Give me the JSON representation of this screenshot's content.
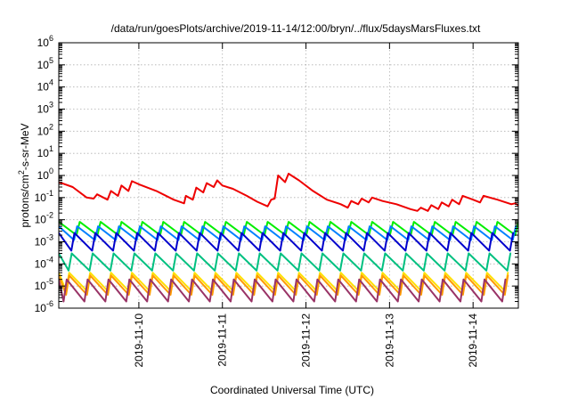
{
  "chart_data": {
    "type": "line",
    "title": "/data/run/goesPlots/archive/2019-11-14/12:00/bryn/../flux/5daysMarsFluxes.txt",
    "xlabel": "Coordinated Universal Time (UTC)",
    "ylabel_parts": [
      "protons/cm",
      "2",
      "-s-sr-MeV"
    ],
    "y_scale": "log",
    "ylim": [
      1e-06,
      1000000.0
    ],
    "y_ticks": [
      {
        "base": "10",
        "exp": "-6",
        "value": 1e-06
      },
      {
        "base": "10",
        "exp": "-5",
        "value": 1e-05
      },
      {
        "base": "10",
        "exp": "-4",
        "value": 0.0001
      },
      {
        "base": "10",
        "exp": "-3",
        "value": 0.001
      },
      {
        "base": "10",
        "exp": "-2",
        "value": 0.01
      },
      {
        "base": "10",
        "exp": "-1",
        "value": 0.1
      },
      {
        "base": "10",
        "exp": "0",
        "value": 1
      },
      {
        "base": "10",
        "exp": "1",
        "value": 10.0
      },
      {
        "base": "10",
        "exp": "2",
        "value": 100.0
      },
      {
        "base": "10",
        "exp": "3",
        "value": 1000.0
      },
      {
        "base": "10",
        "exp": "4",
        "value": 10000.0
      },
      {
        "base": "10",
        "exp": "5",
        "value": 100000.0
      },
      {
        "base": "10",
        "exp": "6",
        "value": 1000000.0
      }
    ],
    "xlim": [
      "2019-11-09 01:00",
      "2019-11-14 13:00"
    ],
    "x_ticks": [
      "2019-11-10",
      "2019-11-11",
      "2019-11-12",
      "2019-11-13",
      "2019-11-14"
    ],
    "grid": true,
    "legend": "none",
    "series": [
      {
        "color": "#ee0000",
        "x": [
          "2019-11-09 01:00",
          "2019-11-09 05:00",
          "2019-11-09 09:00",
          "2019-11-09 11:00",
          "2019-11-09 12:00",
          "2019-11-09 15:00",
          "2019-11-09 16:00",
          "2019-11-09 18:00",
          "2019-11-09 19:00",
          "2019-11-09 21:00",
          "2019-11-09 22:00",
          "2019-11-10 00:00",
          "2019-11-10 05:00",
          "2019-11-10 10:00",
          "2019-11-10 13:00",
          "2019-11-10 13:30",
          "2019-11-10 15:30",
          "2019-11-10 16:30",
          "2019-11-10 18:30",
          "2019-11-10 19:30",
          "2019-11-10 21:30",
          "2019-11-10 22:30",
          "2019-11-11 00:00",
          "2019-11-11 03:00",
          "2019-11-11 07:00",
          "2019-11-11 10:00",
          "2019-11-11 13:00",
          "2019-11-11 14:00",
          "2019-11-11 15:00",
          "2019-11-11 16:00",
          "2019-11-11 18:00",
          "2019-11-11 19:00",
          "2019-11-11 22:00",
          "2019-11-12 02:00",
          "2019-11-12 06:00",
          "2019-11-12 10:00",
          "2019-11-12 12:00",
          "2019-11-12 13:00",
          "2019-11-12 15:00",
          "2019-11-12 16:00",
          "2019-11-12 18:00",
          "2019-11-12 19:00",
          "2019-11-12 22:00",
          "2019-11-13 02:00",
          "2019-11-13 06:00",
          "2019-11-13 08:00",
          "2019-11-13 09:00",
          "2019-11-13 11:00",
          "2019-11-13 12:00",
          "2019-11-13 14:00",
          "2019-11-13 15:00",
          "2019-11-13 17:00",
          "2019-11-13 18:00",
          "2019-11-13 20:00",
          "2019-11-13 21:00",
          "2019-11-14 00:00",
          "2019-11-14 02:00",
          "2019-11-14 03:00",
          "2019-11-14 07:00",
          "2019-11-14 11:00",
          "2019-11-14 12:00",
          "2019-11-14 13:00"
        ],
        "y": [
          0.5,
          0.3,
          0.1,
          0.09,
          0.14,
          0.08,
          0.2,
          0.12,
          0.35,
          0.2,
          0.55,
          0.4,
          0.2,
          0.08,
          0.055,
          0.12,
          0.08,
          0.28,
          0.17,
          0.45,
          0.3,
          0.6,
          0.35,
          0.25,
          0.12,
          0.065,
          0.04,
          0.08,
          0.09,
          1.0,
          0.5,
          1.2,
          0.6,
          0.2,
          0.08,
          0.05,
          0.035,
          0.07,
          0.05,
          0.09,
          0.06,
          0.1,
          0.07,
          0.05,
          0.03,
          0.025,
          0.035,
          0.025,
          0.045,
          0.03,
          0.06,
          0.04,
          0.08,
          0.05,
          0.12,
          0.08,
          0.06,
          0.12,
          0.08,
          0.05,
          0.055,
          0.045
        ]
      },
      {
        "color": "#00ee00",
        "pattern": "sawtooth",
        "low": 0.002,
        "high": 0.008,
        "x_start": "2019-11-09 01:00",
        "x_end": "2019-11-14 13:00",
        "cycle_hours": 6,
        "phase": 0
      },
      {
        "color": "#0080ff",
        "pattern": "sawtooth",
        "low": 0.0012,
        "high": 0.005,
        "x_start": "2019-11-09 01:00",
        "x_end": "2019-11-14 13:00",
        "cycle_hours": 6,
        "phase": 0.12
      },
      {
        "color": "#0000cc",
        "pattern": "sawtooth",
        "low": 0.0004,
        "high": 0.0025,
        "x_start": "2019-11-09 01:00",
        "x_end": "2019-11-14 13:00",
        "cycle_hours": 6,
        "phase": 0.25
      },
      {
        "color": "#00c080",
        "pattern": "sawtooth",
        "low": 5e-05,
        "high": 0.0003,
        "x_start": "2019-11-09 01:00",
        "x_end": "2019-11-14 13:00",
        "cycle_hours": 6,
        "phase": 0.38
      },
      {
        "color": "#ffe000",
        "pattern": "sawtooth",
        "low": 6e-06,
        "high": 4e-05,
        "x_start": "2019-11-09 01:00",
        "x_end": "2019-11-14 13:00",
        "cycle_hours": 6,
        "phase": 0.5
      },
      {
        "color": "#ff9900",
        "pattern": "sawtooth",
        "low": 4e-06,
        "high": 3e-05,
        "x_start": "2019-11-09 01:00",
        "x_end": "2019-11-14 13:00",
        "cycle_hours": 6,
        "phase": 0.5
      },
      {
        "color": "#993366",
        "pattern": "sawtooth",
        "low": 2e-06,
        "high": 2e-05,
        "x_start": "2019-11-09 01:00",
        "x_end": "2019-11-14 13:00",
        "cycle_hours": 6,
        "phase": 0.62
      }
    ]
  }
}
